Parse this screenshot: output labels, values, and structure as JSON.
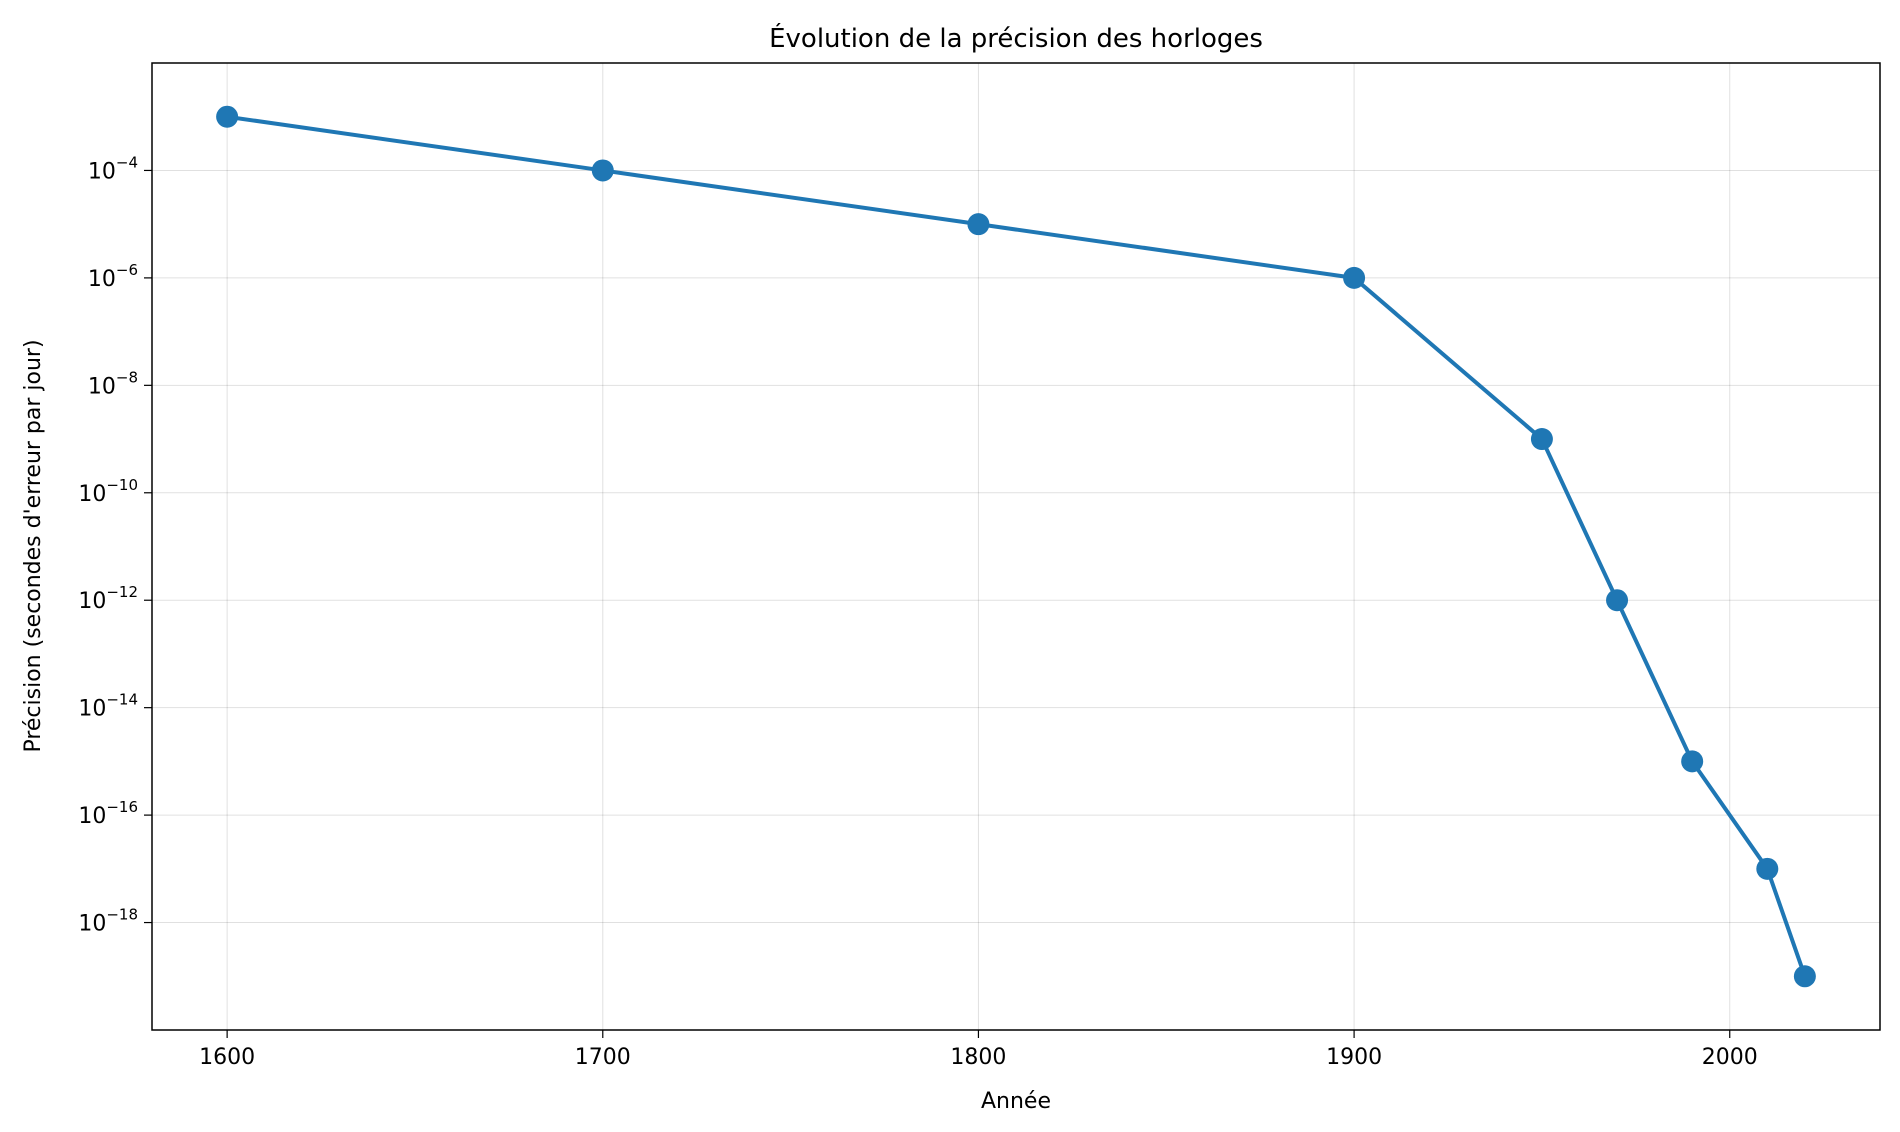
{
  "chart_data": {
    "type": "line",
    "title": "Évolution de la précision des horloges",
    "xlabel": "Année",
    "ylabel": "Précision (secondes d'erreur par jour)",
    "x_scale": "linear",
    "y_scale": "log",
    "xlim": [
      1580,
      2040
    ],
    "ylim": [
      1e-20,
      0.01
    ],
    "x_ticks": [
      1600,
      1700,
      1800,
      1900,
      2000
    ],
    "y_tick_exponents": [
      -4,
      -6,
      -8,
      -10,
      -12,
      -14,
      -16,
      -18
    ],
    "grid": true,
    "legend": "none",
    "series": [
      {
        "color": "#1f77b4",
        "marker": "circle",
        "x": [
          1600,
          1700,
          1800,
          1900,
          1950,
          1970,
          1990,
          2010,
          2020
        ],
        "y": [
          0.001,
          0.0001,
          1e-05,
          1e-06,
          1e-09,
          1e-12,
          1e-15,
          1e-17,
          1e-19
        ]
      }
    ]
  }
}
